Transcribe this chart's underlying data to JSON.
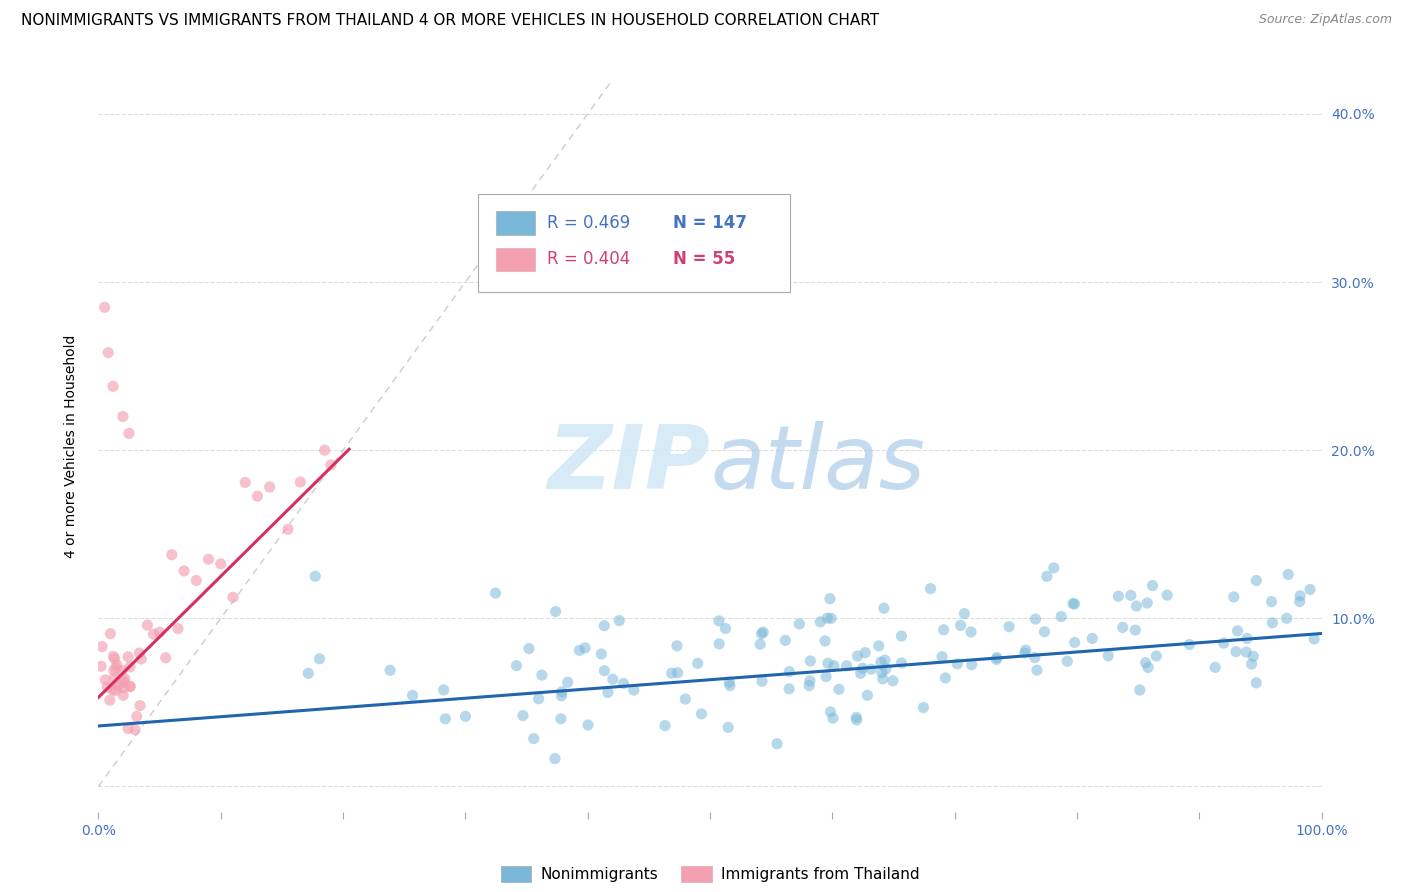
{
  "title": "NONIMMIGRANTS VS IMMIGRANTS FROM THAILAND 4 OR MORE VEHICLES IN HOUSEHOLD CORRELATION CHART",
  "source_text": "Source: ZipAtlas.com",
  "ylabel": "4 or more Vehicles in Household",
  "legend_nonimm": "Nonimmigrants",
  "legend_imm": "Immigrants from Thailand",
  "R_nonimm": 0.469,
  "N_nonimm": 147,
  "R_imm": 0.404,
  "N_imm": 55,
  "blue_color": "#7ab8d9",
  "pink_color": "#f4a0b0",
  "blue_trend_color": "#2166ac",
  "pink_trend_color": "#d63060",
  "diag_color": "#cccccc",
  "grid_color": "#dddddd",
  "bg_color": "#ffffff",
  "xlim": [
    0.0,
    1.0
  ],
  "ylim": [
    -0.015,
    0.42
  ],
  "title_fontsize": 11,
  "axis_label_fontsize": 10,
  "tick_fontsize": 10,
  "legend_fontsize": 11,
  "watermark_zip_color": "#cce0f0",
  "watermark_atlas_color": "#a8cce4",
  "blue_tick_color": "#4472c4",
  "right_tick_color": "#4472c4"
}
